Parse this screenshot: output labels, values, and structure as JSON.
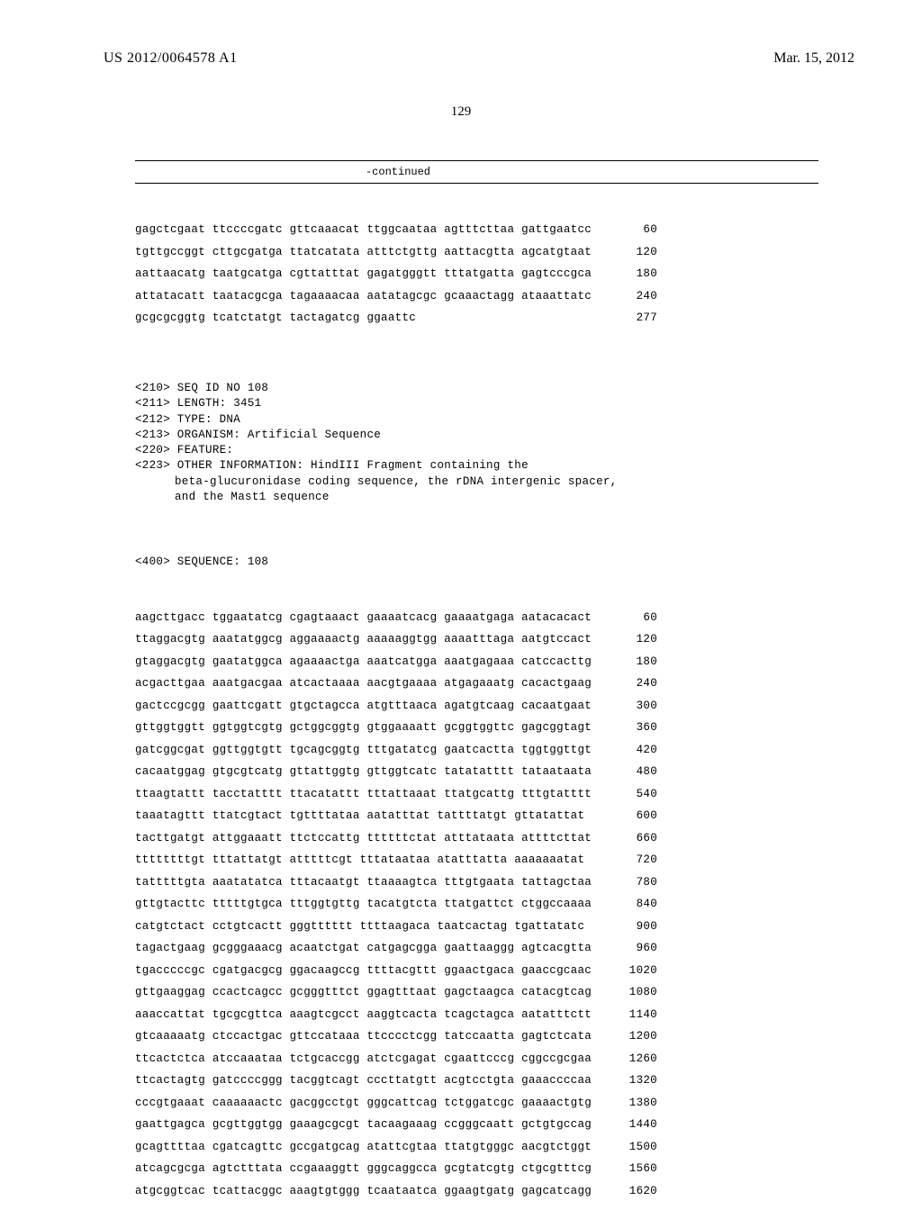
{
  "header": {
    "pub_number": "US 2012/0064578 A1",
    "pub_date": "Mar. 15, 2012",
    "page_number": "129",
    "continued_label": "-continued"
  },
  "seq107": {
    "rows": [
      {
        "t": "gagctcgaat ttccccgatc gttcaaacat ttggcaataa agtttcttaa gattgaatcc",
        "p": "60"
      },
      {
        "t": "tgttgccggt cttgcgatga ttatcatata atttctgttg aattacgtta agcatgtaat",
        "p": "120"
      },
      {
        "t": "aattaacatg taatgcatga cgttatttat gagatgggtt tttatgatta gagtcccgca",
        "p": "180"
      },
      {
        "t": "attatacatt taatacgcga tagaaaacaa aatatagcgc gcaaactagg ataaattatc",
        "p": "240"
      },
      {
        "t": "gcgcgcggtg tcatctatgt tactagatcg ggaattc",
        "p": "277"
      }
    ]
  },
  "meta": {
    "lines": [
      "<210> SEQ ID NO 108",
      "<211> LENGTH: 3451",
      "<212> TYPE: DNA",
      "<213> ORGANISM: Artificial Sequence",
      "<220> FEATURE:",
      "<223> OTHER INFORMATION: HindIII Fragment containing the"
    ],
    "indented": [
      "beta-glucuronidase coding sequence, the rDNA intergenic spacer,",
      "and the Mast1 sequence"
    ],
    "seq_label": "<400> SEQUENCE: 108"
  },
  "seq108": {
    "rows": [
      {
        "t": "aagcttgacc tggaatatcg cgagtaaact gaaaatcacg gaaaatgaga aatacacact",
        "p": "60"
      },
      {
        "t": "ttaggacgtg aaatatggcg aggaaaactg aaaaaggtgg aaaatttaga aatgtccact",
        "p": "120"
      },
      {
        "t": "gtaggacgtg gaatatggca agaaaactga aaatcatgga aaatgagaaa catccacttg",
        "p": "180"
      },
      {
        "t": "acgacttgaa aaatgacgaa atcactaaaa aacgtgaaaa atgagaaatg cacactgaag",
        "p": "240"
      },
      {
        "t": "gactccgcgg gaattcgatt gtgctagcca atgtttaaca agatgtcaag cacaatgaat",
        "p": "300"
      },
      {
        "t": "gttggtggtt ggtggtcgtg gctggcggtg gtggaaaatt gcggtggttc gagcggtagt",
        "p": "360"
      },
      {
        "t": "gatcggcgat ggttggtgtt tgcagcggtg tttgatatcg gaatcactta tggtggttgt",
        "p": "420"
      },
      {
        "t": "cacaatggag gtgcgtcatg gttattggtg gttggtcatc tatatatttt tataataata",
        "p": "480"
      },
      {
        "t": "ttaagtattt tacctatttt ttacatattt tttattaaat ttatgcattg tttgtatttt",
        "p": "540"
      },
      {
        "t": "taaatagttt ttatcgtact tgttttataa aatatttat tattttatgt gttatattat",
        "p": "600"
      },
      {
        "t": "tacttgatgt attggaaatt ttctccattg ttttttctat atttataata attttcttat",
        "p": "660"
      },
      {
        "t": "ttttttttgt tttattatgt atttttcgt tttataataa atatttatta aaaaaaatat",
        "p": "720"
      },
      {
        "t": "tatttttgta aaatatatca tttacaatgt ttaaaagtca tttgtgaata tattagctaa",
        "p": "780"
      },
      {
        "t": "gttgtacttc tttttgtgca tttggtgttg tacatgtcta ttatgattct ctggccaaaa",
        "p": "840"
      },
      {
        "t": "catgtctact cctgtcactt gggtttttt ttttaagaca taatcactag tgattatatc",
        "p": "900"
      },
      {
        "t": "tagactgaag gcgggaaacg acaatctgat catgagcgga gaattaaggg agtcacgtta",
        "p": "960"
      },
      {
        "t": "tgacccccgc cgatgacgcg ggacaagccg ttttacgttt ggaactgaca gaaccgcaac",
        "p": "1020"
      },
      {
        "t": "gttgaaggag ccactcagcc gcgggtttct ggagtttaat gagctaagca catacgtcag",
        "p": "1080"
      },
      {
        "t": "aaaccattat tgcgcgttca aaagtcgcct aaggtcacta tcagctagca aatatttctt",
        "p": "1140"
      },
      {
        "t": "gtcaaaaatg ctccactgac gttccataaa ttcccctcgg tatccaatta gagtctcata",
        "p": "1200"
      },
      {
        "t": "ttcactctca atccaaataa tctgcaccgg atctcgagat cgaattcccg cggccgcgaa",
        "p": "1260"
      },
      {
        "t": "ttcactagtg gatccccggg tacggtcagt cccttatgtt acgtcctgta gaaaccccaa",
        "p": "1320"
      },
      {
        "t": "cccgtgaaat caaaaaactc gacggcctgt gggcattcag tctggatcgc gaaaactgtg",
        "p": "1380"
      },
      {
        "t": "gaattgagca gcgttggtgg gaaagcgcgt tacaagaaag ccgggcaatt gctgtgccag",
        "p": "1440"
      },
      {
        "t": "gcagttttaa cgatcagttc gccgatgcag atattcgtaa ttatgtgggc aacgtctggt",
        "p": "1500"
      },
      {
        "t": "atcagcgcga agtctttata ccgaaaggtt gggcaggcca gcgtatcgtg ctgcgtttcg",
        "p": "1560"
      },
      {
        "t": "atgcggtcac tcattacggc aaagtgtggg tcaataatca ggaagtgatg gagcatcagg",
        "p": "1620"
      }
    ]
  }
}
